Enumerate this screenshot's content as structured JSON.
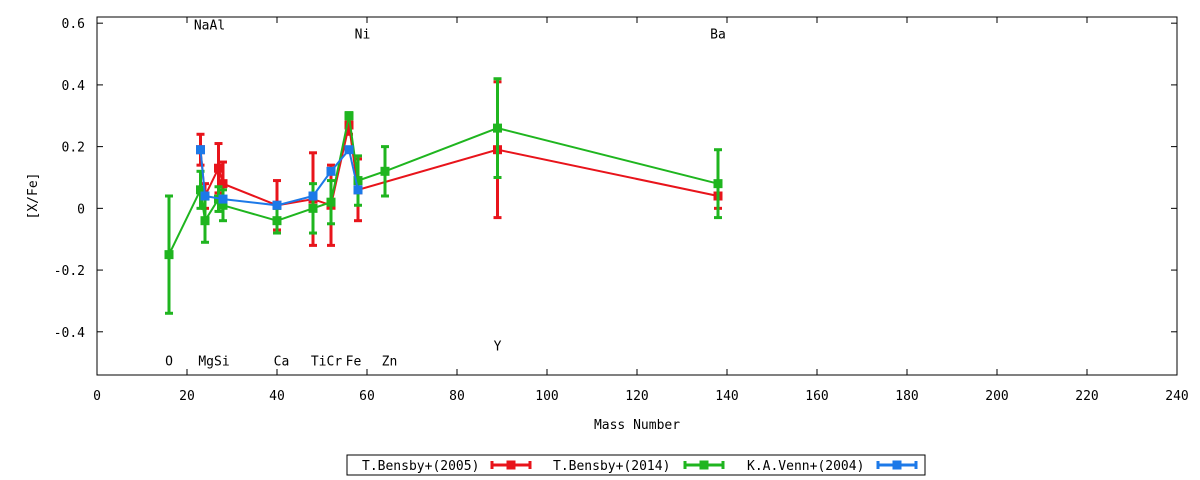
{
  "chart_data": {
    "type": "line",
    "title": "",
    "xlabel": "Mass Number",
    "ylabel": "[X/Fe]",
    "xlim": [
      0,
      240
    ],
    "ylim": [
      -0.54,
      0.62
    ],
    "x_ticks": [
      "0",
      "20",
      "40",
      "60",
      "80",
      "100",
      "120",
      "140",
      "160",
      "180",
      "200",
      "220",
      "240"
    ],
    "y_ticks": [
      "-0.4",
      "-0.2",
      "0",
      "0.2",
      "0.4",
      "0.6"
    ],
    "grid": false,
    "legend_position": "bottom-center",
    "element_labels": [
      {
        "text": "O",
        "x": 16,
        "y": -0.51
      },
      {
        "text": "NaAl",
        "x": 25,
        "y": 0.58
      },
      {
        "text": "MgSi",
        "x": 26,
        "y": -0.51
      },
      {
        "text": "Ca",
        "x": 41,
        "y": -0.51
      },
      {
        "text": "TiCr",
        "x": 51,
        "y": -0.51
      },
      {
        "text": "Fe",
        "x": 57,
        "y": -0.51
      },
      {
        "text": "Ni",
        "x": 59,
        "y": 0.55
      },
      {
        "text": "Zn",
        "x": 65,
        "y": -0.51
      },
      {
        "text": "Y",
        "x": 89,
        "y": -0.46
      },
      {
        "text": "Ba",
        "x": 138,
        "y": 0.55
      }
    ],
    "series": [
      {
        "name": "T.Bensby+(2005)",
        "color": "#e8141b",
        "points": [
          {
            "x": 23,
            "y": 0.19,
            "err": 0.05
          },
          {
            "x": 24,
            "y": 0.04,
            "err": 0.04
          },
          {
            "x": 27,
            "y": 0.13,
            "err": 0.08
          },
          {
            "x": 28,
            "y": 0.08,
            "err": 0.07
          },
          {
            "x": 40,
            "y": 0.01,
            "err": 0.08
          },
          {
            "x": 48,
            "y": 0.03,
            "err": 0.15
          },
          {
            "x": 52,
            "y": 0.01,
            "err": 0.13
          },
          {
            "x": 56,
            "y": 0.27,
            "err": 0.03
          },
          {
            "x": 58,
            "y": 0.06,
            "err": 0.1
          },
          {
            "x": 89,
            "y": 0.19,
            "err": 0.22
          },
          {
            "x": 138,
            "y": 0.04,
            "err": 0.04
          }
        ]
      },
      {
        "name": "T.Bensby+(2014)",
        "color": "#1fb51f",
        "points": [
          {
            "x": 16,
            "y": -0.15,
            "err": 0.19
          },
          {
            "x": 23,
            "y": 0.06,
            "err": 0.06
          },
          {
            "x": 24,
            "y": -0.04,
            "err": 0.07
          },
          {
            "x": 27,
            "y": 0.03,
            "err": 0.04
          },
          {
            "x": 28,
            "y": 0.01,
            "err": 0.05
          },
          {
            "x": 40,
            "y": -0.04,
            "err": 0.04
          },
          {
            "x": 48,
            "y": 0.0,
            "err": 0.08
          },
          {
            "x": 52,
            "y": 0.02,
            "err": 0.07
          },
          {
            "x": 56,
            "y": 0.3,
            "err": 0.01
          },
          {
            "x": 58,
            "y": 0.09,
            "err": 0.08
          },
          {
            "x": 64,
            "y": 0.12,
            "err": 0.08
          },
          {
            "x": 89,
            "y": 0.26,
            "err": 0.16
          },
          {
            "x": 138,
            "y": 0.08,
            "err": 0.11
          }
        ]
      },
      {
        "name": "K.A.Venn+(2004)",
        "color": "#1c79e8",
        "points": [
          {
            "x": 23,
            "y": 0.19,
            "err": 0
          },
          {
            "x": 24,
            "y": 0.04,
            "err": 0
          },
          {
            "x": 28,
            "y": 0.03,
            "err": 0
          },
          {
            "x": 40,
            "y": 0.01,
            "err": 0
          },
          {
            "x": 48,
            "y": 0.04,
            "err": 0
          },
          {
            "x": 52,
            "y": 0.12,
            "err": 0
          },
          {
            "x": 56,
            "y": 0.19,
            "err": 0
          },
          {
            "x": 58,
            "y": 0.06,
            "err": 0
          }
        ]
      }
    ]
  }
}
